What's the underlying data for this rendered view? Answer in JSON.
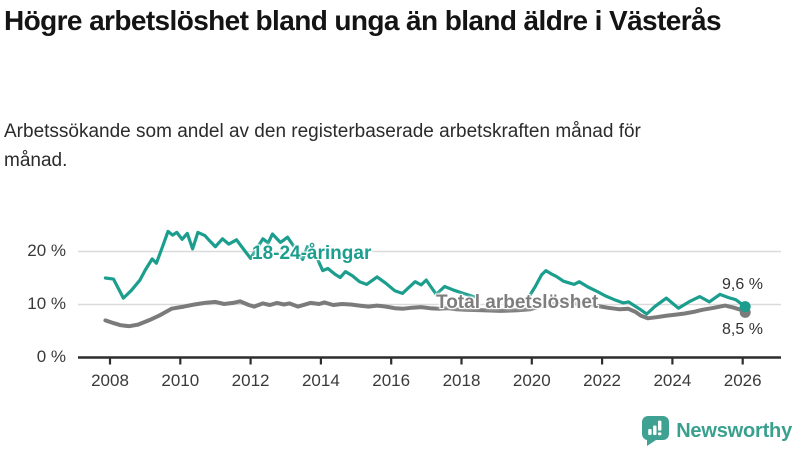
{
  "title": "Högre arbetslöshet bland unga än bland äldre i Västerås",
  "subtitle": "Arbetssökande som andel av den registerbaserade arbetskraften månad för månad.",
  "branding": {
    "name": "Newsworthy",
    "color": "#3aa08e"
  },
  "colors": {
    "youth_line": "#1b9e8e",
    "total_line": "#7b7b7b",
    "gridline": "#dadada",
    "axis": "#2d2d2d",
    "tick_text": "#3a3a3a",
    "end_label_text": "#333333"
  },
  "chart_data": {
    "type": "line",
    "title": "Högre arbetslöshet bland unga än bland äldre i Västerås",
    "subtitle": "Arbetssökande som andel av den registerbaserade arbetskraften månad för månad.",
    "unit": "%",
    "grid": "horizontal-only",
    "legend_position": "inline-annotations",
    "x_axis": {
      "ticks": [
        {
          "year": 2008,
          "label": "2008"
        },
        {
          "year": 2010,
          "label": "2010"
        },
        {
          "year": 2012,
          "label": "2012"
        },
        {
          "year": 2014,
          "label": "2014"
        },
        {
          "year": 2016,
          "label": "2016"
        },
        {
          "year": 2018,
          "label": "2018"
        },
        {
          "year": 2020,
          "label": "2020"
        },
        {
          "year": 2022,
          "label": "2022"
        },
        {
          "year": 2024,
          "label": "2024"
        },
        {
          "year": 2026,
          "label": "2026"
        }
      ],
      "range": [
        2007.0,
        2027.1
      ]
    },
    "y_axis": {
      "ticks": [
        {
          "value": 0,
          "label": "0 %"
        },
        {
          "value": 10,
          "label": "10 %"
        },
        {
          "value": 20,
          "label": "20 %"
        }
      ],
      "range": [
        0,
        25
      ]
    },
    "series": [
      {
        "id": "youth",
        "name": "18-24-åringar",
        "color": "#1b9e8e",
        "line_width": 3.2,
        "end_value": 9.6,
        "end_label": "9,6 %",
        "note": "data gap mid-2018 to late 2019",
        "segments": [
          [
            [
              2007.87,
              15.0
            ],
            [
              2008.1,
              14.8
            ],
            [
              2008.38,
              11.2
            ],
            [
              2008.6,
              12.6
            ],
            [
              2008.85,
              14.6
            ],
            [
              2009.0,
              16.5
            ],
            [
              2009.2,
              18.6
            ],
            [
              2009.32,
              17.8
            ],
            [
              2009.5,
              21.0
            ],
            [
              2009.65,
              23.8
            ],
            [
              2009.78,
              23.1
            ],
            [
              2009.9,
              23.6
            ],
            [
              2010.05,
              22.3
            ],
            [
              2010.2,
              23.4
            ],
            [
              2010.35,
              20.5
            ],
            [
              2010.5,
              23.6
            ],
            [
              2010.7,
              23.0
            ],
            [
              2010.85,
              21.9
            ],
            [
              2011.0,
              20.9
            ],
            [
              2011.2,
              22.4
            ],
            [
              2011.38,
              21.4
            ],
            [
              2011.6,
              22.2
            ],
            [
              2011.85,
              20.0
            ],
            [
              2012.0,
              18.7
            ],
            [
              2012.35,
              22.4
            ],
            [
              2012.5,
              21.6
            ],
            [
              2012.62,
              23.3
            ],
            [
              2012.85,
              21.7
            ],
            [
              2013.05,
              22.7
            ],
            [
              2013.3,
              20.3
            ],
            [
              2013.48,
              18.5
            ],
            [
              2013.62,
              20.9
            ],
            [
              2013.85,
              19.4
            ],
            [
              2014.05,
              16.4
            ],
            [
              2014.2,
              16.8
            ],
            [
              2014.4,
              15.7
            ],
            [
              2014.55,
              15.1
            ],
            [
              2014.7,
              16.2
            ],
            [
              2014.9,
              15.4
            ],
            [
              2015.1,
              14.3
            ],
            [
              2015.3,
              13.8
            ],
            [
              2015.6,
              15.2
            ],
            [
              2015.85,
              14.0
            ],
            [
              2016.1,
              12.6
            ],
            [
              2016.32,
              12.1
            ],
            [
              2016.68,
              14.3
            ],
            [
              2016.85,
              13.7
            ],
            [
              2017.0,
              14.6
            ],
            [
              2017.28,
              11.9
            ],
            [
              2017.52,
              13.4
            ],
            [
              2017.78,
              12.7
            ],
            [
              2018.05,
              12.1
            ],
            [
              2018.35,
              11.5
            ]
          ],
          [
            [
              2019.75,
              10.3
            ],
            [
              2019.95,
              11.8
            ],
            [
              2020.1,
              13.4
            ],
            [
              2020.28,
              15.6
            ],
            [
              2020.4,
              16.4
            ],
            [
              2020.55,
              15.8
            ],
            [
              2020.7,
              15.3
            ],
            [
              2020.9,
              14.4
            ],
            [
              2021.05,
              14.1
            ],
            [
              2021.2,
              13.8
            ],
            [
              2021.35,
              14.3
            ],
            [
              2021.6,
              13.3
            ],
            [
              2021.85,
              12.5
            ],
            [
              2022.1,
              11.6
            ],
            [
              2022.35,
              10.9
            ],
            [
              2022.6,
              10.3
            ],
            [
              2022.75,
              10.5
            ],
            [
              2023.1,
              9.0
            ],
            [
              2023.27,
              8.2
            ],
            [
              2023.5,
              9.6
            ],
            [
              2023.83,
              11.2
            ],
            [
              2024.17,
              9.3
            ],
            [
              2024.5,
              10.6
            ],
            [
              2024.78,
              11.5
            ],
            [
              2025.05,
              10.5
            ],
            [
              2025.35,
              11.9
            ],
            [
              2025.6,
              11.3
            ],
            [
              2025.8,
              10.9
            ],
            [
              2026.07,
              9.6
            ]
          ]
        ]
      },
      {
        "id": "total",
        "name": "Total arbetslöshet",
        "color": "#7b7b7b",
        "line_width": 4,
        "end_value": 8.5,
        "end_label": "8,5 %",
        "segments": [
          [
            [
              2007.87,
              7.0
            ],
            [
              2008.1,
              6.5
            ],
            [
              2008.3,
              6.1
            ],
            [
              2008.55,
              5.9
            ],
            [
              2008.8,
              6.2
            ],
            [
              2009.1,
              7.0
            ],
            [
              2009.4,
              7.9
            ],
            [
              2009.75,
              9.2
            ],
            [
              2010.1,
              9.6
            ],
            [
              2010.4,
              10.0
            ],
            [
              2010.7,
              10.3
            ],
            [
              2011.0,
              10.5
            ],
            [
              2011.25,
              10.1
            ],
            [
              2011.5,
              10.3
            ],
            [
              2011.7,
              10.6
            ],
            [
              2011.95,
              9.9
            ],
            [
              2012.1,
              9.6
            ],
            [
              2012.35,
              10.2
            ],
            [
              2012.55,
              9.9
            ],
            [
              2012.75,
              10.3
            ],
            [
              2012.95,
              10.0
            ],
            [
              2013.1,
              10.2
            ],
            [
              2013.35,
              9.6
            ],
            [
              2013.7,
              10.3
            ],
            [
              2013.95,
              10.1
            ],
            [
              2014.1,
              10.4
            ],
            [
              2014.35,
              9.9
            ],
            [
              2014.6,
              10.1
            ],
            [
              2014.85,
              10.0
            ],
            [
              2015.1,
              9.8
            ],
            [
              2015.35,
              9.6
            ],
            [
              2015.6,
              9.8
            ],
            [
              2015.85,
              9.6
            ],
            [
              2016.1,
              9.3
            ],
            [
              2016.35,
              9.2
            ],
            [
              2016.6,
              9.4
            ],
            [
              2016.85,
              9.5
            ],
            [
              2017.1,
              9.3
            ],
            [
              2017.35,
              9.2
            ],
            [
              2017.6,
              9.3
            ],
            [
              2017.85,
              9.1
            ],
            [
              2018.1,
              9.0
            ],
            [
              2018.6,
              8.9
            ],
            [
              2019.1,
              8.8
            ],
            [
              2019.6,
              8.9
            ],
            [
              2019.95,
              9.1
            ],
            [
              2020.3,
              9.8
            ],
            [
              2020.6,
              10.1
            ],
            [
              2020.9,
              10.3
            ],
            [
              2021.2,
              10.2
            ],
            [
              2021.6,
              10.0
            ],
            [
              2021.9,
              9.7
            ],
            [
              2022.15,
              9.4
            ],
            [
              2022.5,
              9.1
            ],
            [
              2022.74,
              9.2
            ],
            [
              2022.95,
              8.6
            ],
            [
              2023.1,
              7.9
            ],
            [
              2023.3,
              7.4
            ],
            [
              2023.55,
              7.6
            ],
            [
              2023.85,
              7.9
            ],
            [
              2024.1,
              8.1
            ],
            [
              2024.35,
              8.3
            ],
            [
              2024.6,
              8.6
            ],
            [
              2024.85,
              9.0
            ],
            [
              2025.2,
              9.4
            ],
            [
              2025.5,
              9.8
            ],
            [
              2025.75,
              9.4
            ],
            [
              2025.95,
              9.0
            ],
            [
              2026.07,
              8.5
            ]
          ]
        ]
      }
    ]
  }
}
